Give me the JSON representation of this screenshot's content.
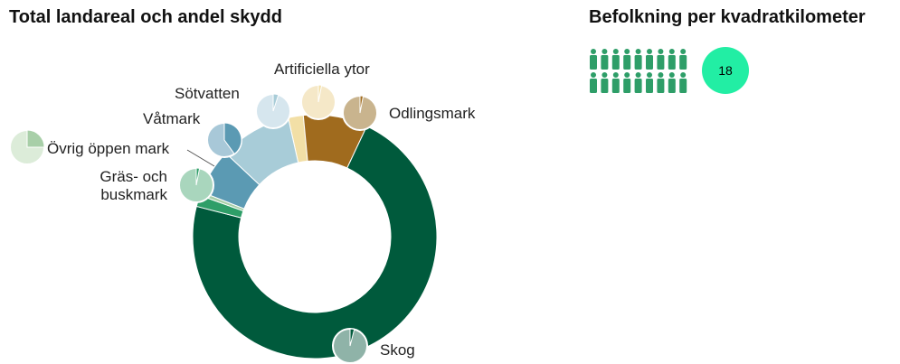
{
  "chart_data": {
    "type": "donut",
    "title": "Total landareal och andel skydd",
    "categories": [
      "Artificiella ytor",
      "Odlingsmark",
      "Skog",
      "Gräs- och buskmark",
      "Övrig öppen mark",
      "Våtmark",
      "Sötvatten"
    ],
    "values": [
      2,
      8.5,
      72,
      1.5,
      0.5,
      6,
      9.5
    ],
    "colors": [
      "#f2dfa6",
      "#a06b1e",
      "#005a3c",
      "#2e9e68",
      "#a8cfa8",
      "#5b9ab3",
      "#a8ccd8"
    ],
    "protected_values": [
      3,
      3,
      4,
      3,
      25,
      40,
      5
    ],
    "protected_colors": [
      "#f5e8c8",
      "#c9b48e",
      "#8fb3a8",
      "#a9d6bd",
      "#dcecd9",
      "#a8c8d8",
      "#d6e6ee"
    ]
  },
  "population": {
    "title": "Befolkning per kvadratkilometer",
    "value": 18,
    "color": "#2e9e68",
    "badge_color": "#22eea4"
  }
}
